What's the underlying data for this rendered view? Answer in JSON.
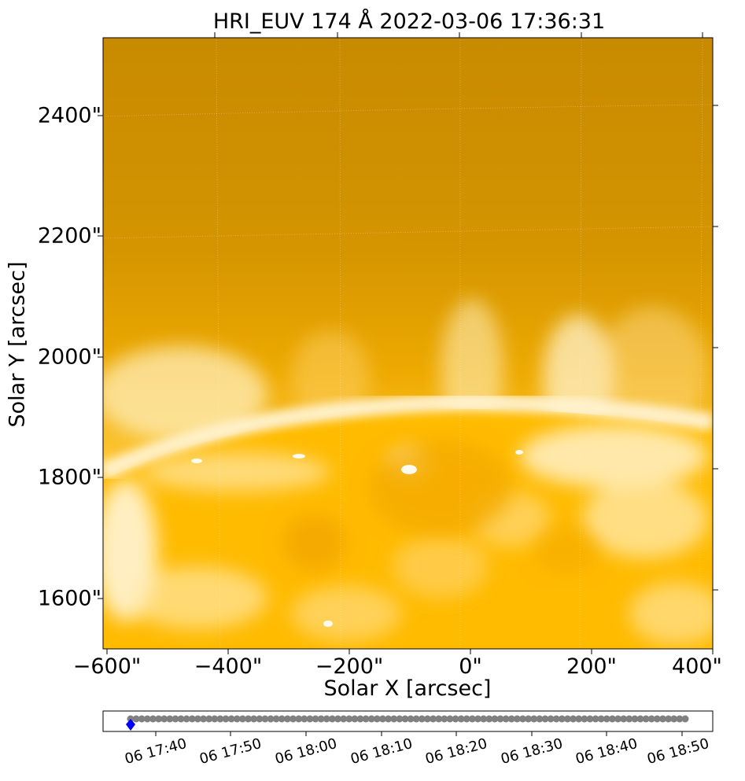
{
  "title": "HRI_EUV 174 Å 2022-03-06 17:36:31",
  "xlabel": "Solar X [arcsec]",
  "ylabel": "Solar Y [arcsec]",
  "x_ticks": [
    "−600\"",
    "−400\"",
    "−200\"",
    "0\"",
    "200\"",
    "400\""
  ],
  "y_ticks": [
    "2400\"",
    "2200\"",
    "2000\"",
    "1800\"",
    "1600\""
  ],
  "timeline_ticks": [
    "06 17:40",
    "06 17:50",
    "06 18:00",
    "06 18:10",
    "06 18:20",
    "06 18:30",
    "06 18:40",
    "06 18:50"
  ],
  "colors": {
    "sky_top": "#c98a00",
    "sky_mid": "#e0a200",
    "disk": "#ffb900",
    "limb": "#fff2cf",
    "timeline_dot": "#808080",
    "current_marker": "#0000ff"
  },
  "chart_data": {
    "type": "scatter",
    "title": "HRI_EUV 174 Å 2022-03-06 17:36:31",
    "xlabel": "Solar X [arcsec]",
    "ylabel": "Solar Y [arcsec]",
    "xlim": [
      -600,
      400
    ],
    "ylim": [
      1515,
      2525
    ],
    "timeline": {
      "start": "06 17:36",
      "end": "06 18:51",
      "current": "06 17:36:31",
      "frame_count": 100
    }
  }
}
